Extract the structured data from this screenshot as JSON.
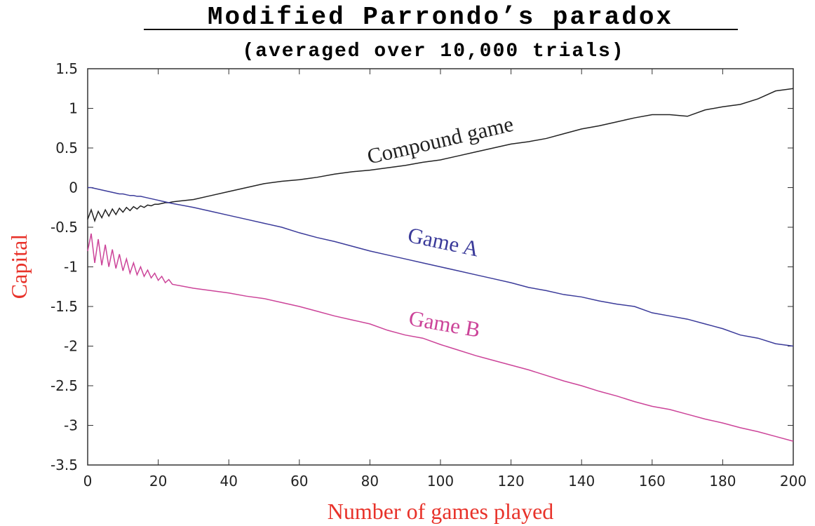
{
  "chart_data": {
    "type": "line",
    "title": "Modified Parrondo’s paradox",
    "subtitle": "(averaged over 10,000 trials)",
    "x_label": "Number of games played",
    "y_label": "Capital",
    "x": [
      0,
      1,
      2,
      3,
      4,
      5,
      6,
      7,
      8,
      9,
      10,
      11,
      12,
      13,
      14,
      15,
      16,
      17,
      18,
      19,
      20,
      21,
      22,
      23,
      24,
      30,
      35,
      40,
      45,
      50,
      55,
      60,
      65,
      70,
      75,
      80,
      85,
      90,
      95,
      100,
      105,
      110,
      115,
      120,
      125,
      130,
      135,
      140,
      145,
      150,
      155,
      160,
      165,
      170,
      175,
      180,
      185,
      190,
      195,
      200
    ],
    "series": [
      {
        "name": "Compound game",
        "color": "#222222",
        "values": [
          -0.4,
          -0.28,
          -0.42,
          -0.3,
          -0.38,
          -0.28,
          -0.36,
          -0.27,
          -0.34,
          -0.26,
          -0.31,
          -0.25,
          -0.29,
          -0.24,
          -0.27,
          -0.23,
          -0.25,
          -0.22,
          -0.23,
          -0.21,
          -0.21,
          -0.2,
          -0.19,
          -0.19,
          -0.18,
          -0.15,
          -0.1,
          -0.05,
          0,
          0.05,
          0.08,
          0.1,
          0.13,
          0.17,
          0.2,
          0.22,
          0.25,
          0.28,
          0.32,
          0.35,
          0.4,
          0.45,
          0.5,
          0.55,
          0.58,
          0.62,
          0.68,
          0.74,
          0.78,
          0.83,
          0.88,
          0.92,
          0.92,
          0.9,
          0.98,
          1.02,
          1.05,
          1.12,
          1.22,
          1.25
        ]
      },
      {
        "name": "Game A",
        "color": "#3b3b9a",
        "values": [
          0,
          0,
          -0.01,
          -0.02,
          -0.03,
          -0.04,
          -0.05,
          -0.06,
          -0.07,
          -0.08,
          -0.08,
          -0.09,
          -0.1,
          -0.1,
          -0.11,
          -0.11,
          -0.12,
          -0.13,
          -0.14,
          -0.15,
          -0.16,
          -0.17,
          -0.18,
          -0.19,
          -0.2,
          -0.25,
          -0.3,
          -0.35,
          -0.4,
          -0.45,
          -0.5,
          -0.57,
          -0.63,
          -0.68,
          -0.74,
          -0.8,
          -0.85,
          -0.9,
          -0.95,
          -1.0,
          -1.05,
          -1.1,
          -1.15,
          -1.2,
          -1.26,
          -1.3,
          -1.35,
          -1.38,
          -1.43,
          -1.47,
          -1.5,
          -1.58,
          -1.62,
          -1.66,
          -1.72,
          -1.78,
          -1.86,
          -1.9,
          -1.97,
          -2.0
        ]
      },
      {
        "name": "Game B",
        "color": "#cc4499",
        "values": [
          -0.8,
          -0.58,
          -0.95,
          -0.65,
          -0.98,
          -0.72,
          -1.0,
          -0.78,
          -1.02,
          -0.84,
          -1.05,
          -0.9,
          -1.08,
          -0.95,
          -1.1,
          -1.0,
          -1.12,
          -1.04,
          -1.14,
          -1.08,
          -1.17,
          -1.12,
          -1.2,
          -1.16,
          -1.22,
          -1.27,
          -1.3,
          -1.33,
          -1.37,
          -1.4,
          -1.45,
          -1.5,
          -1.56,
          -1.62,
          -1.67,
          -1.72,
          -1.8,
          -1.86,
          -1.9,
          -1.98,
          -2.05,
          -2.12,
          -2.18,
          -2.24,
          -2.3,
          -2.37,
          -2.44,
          -2.5,
          -2.57,
          -2.63,
          -2.7,
          -2.76,
          -2.8,
          -2.86,
          -2.92,
          -2.97,
          -3.03,
          -3.08,
          -3.14,
          -3.2
        ]
      }
    ],
    "xlim": [
      0,
      200
    ],
    "xticks": [
      0,
      20,
      40,
      60,
      80,
      100,
      120,
      140,
      160,
      180,
      200
    ],
    "ylim": [
      -3.5,
      1.5
    ],
    "yticks": [
      1.5,
      1,
      0.5,
      0,
      -0.5,
      -1,
      -1.5,
      -2,
      -2.5,
      -3,
      -3.5
    ]
  }
}
